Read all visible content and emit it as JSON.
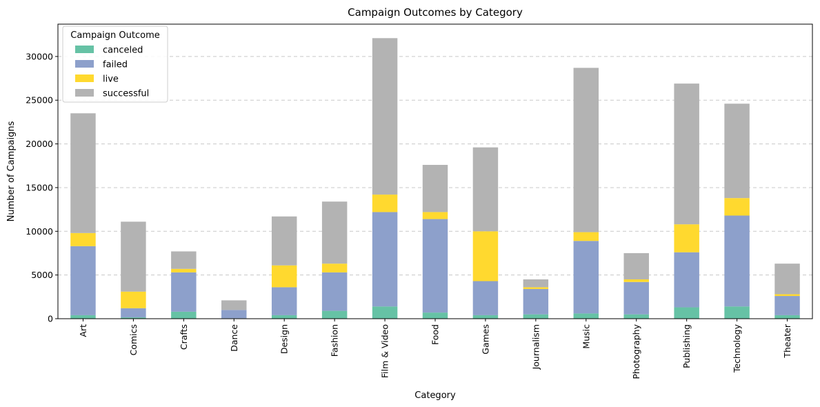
{
  "chart_data": {
    "type": "bar",
    "stacked": true,
    "title": "Campaign Outcomes by Category",
    "xlabel": "Category",
    "ylabel": "Number of Campaigns",
    "ylim": [
      0,
      33700
    ],
    "yticks": [
      0,
      5000,
      10000,
      15000,
      20000,
      25000,
      30000
    ],
    "grid": "y-dashed",
    "legend": {
      "title": "Campaign Outcome",
      "placement": "top-left"
    },
    "categories": [
      "Art",
      "Comics",
      "Crafts",
      "Dance",
      "Design",
      "Fashion",
      "Film & Video",
      "Food",
      "Games",
      "Journalism",
      "Music",
      "Photography",
      "Publishing",
      "Technology",
      "Theater"
    ],
    "series": [
      {
        "name": "canceled",
        "color": "#66c2a5",
        "values": [
          400,
          150,
          800,
          50,
          400,
          900,
          1400,
          700,
          400,
          500,
          600,
          500,
          1300,
          1400,
          400
        ]
      },
      {
        "name": "failed",
        "color": "#8da0cb",
        "values": [
          7900,
          1050,
          4500,
          950,
          3200,
          4400,
          10800,
          10700,
          3900,
          2900,
          8300,
          3700,
          6300,
          10400,
          2200
        ]
      },
      {
        "name": "live",
        "color": "#ffd92f",
        "values": [
          1500,
          1900,
          400,
          0,
          2500,
          1000,
          2000,
          800,
          5700,
          200,
          1000,
          300,
          3200,
          2000,
          200
        ]
      },
      {
        "name": "successful",
        "color": "#b3b3b3",
        "values": [
          13700,
          8000,
          2000,
          1100,
          5600,
          7100,
          17900,
          5400,
          9600,
          900,
          18800,
          3000,
          16100,
          10800,
          3500
        ]
      }
    ]
  }
}
